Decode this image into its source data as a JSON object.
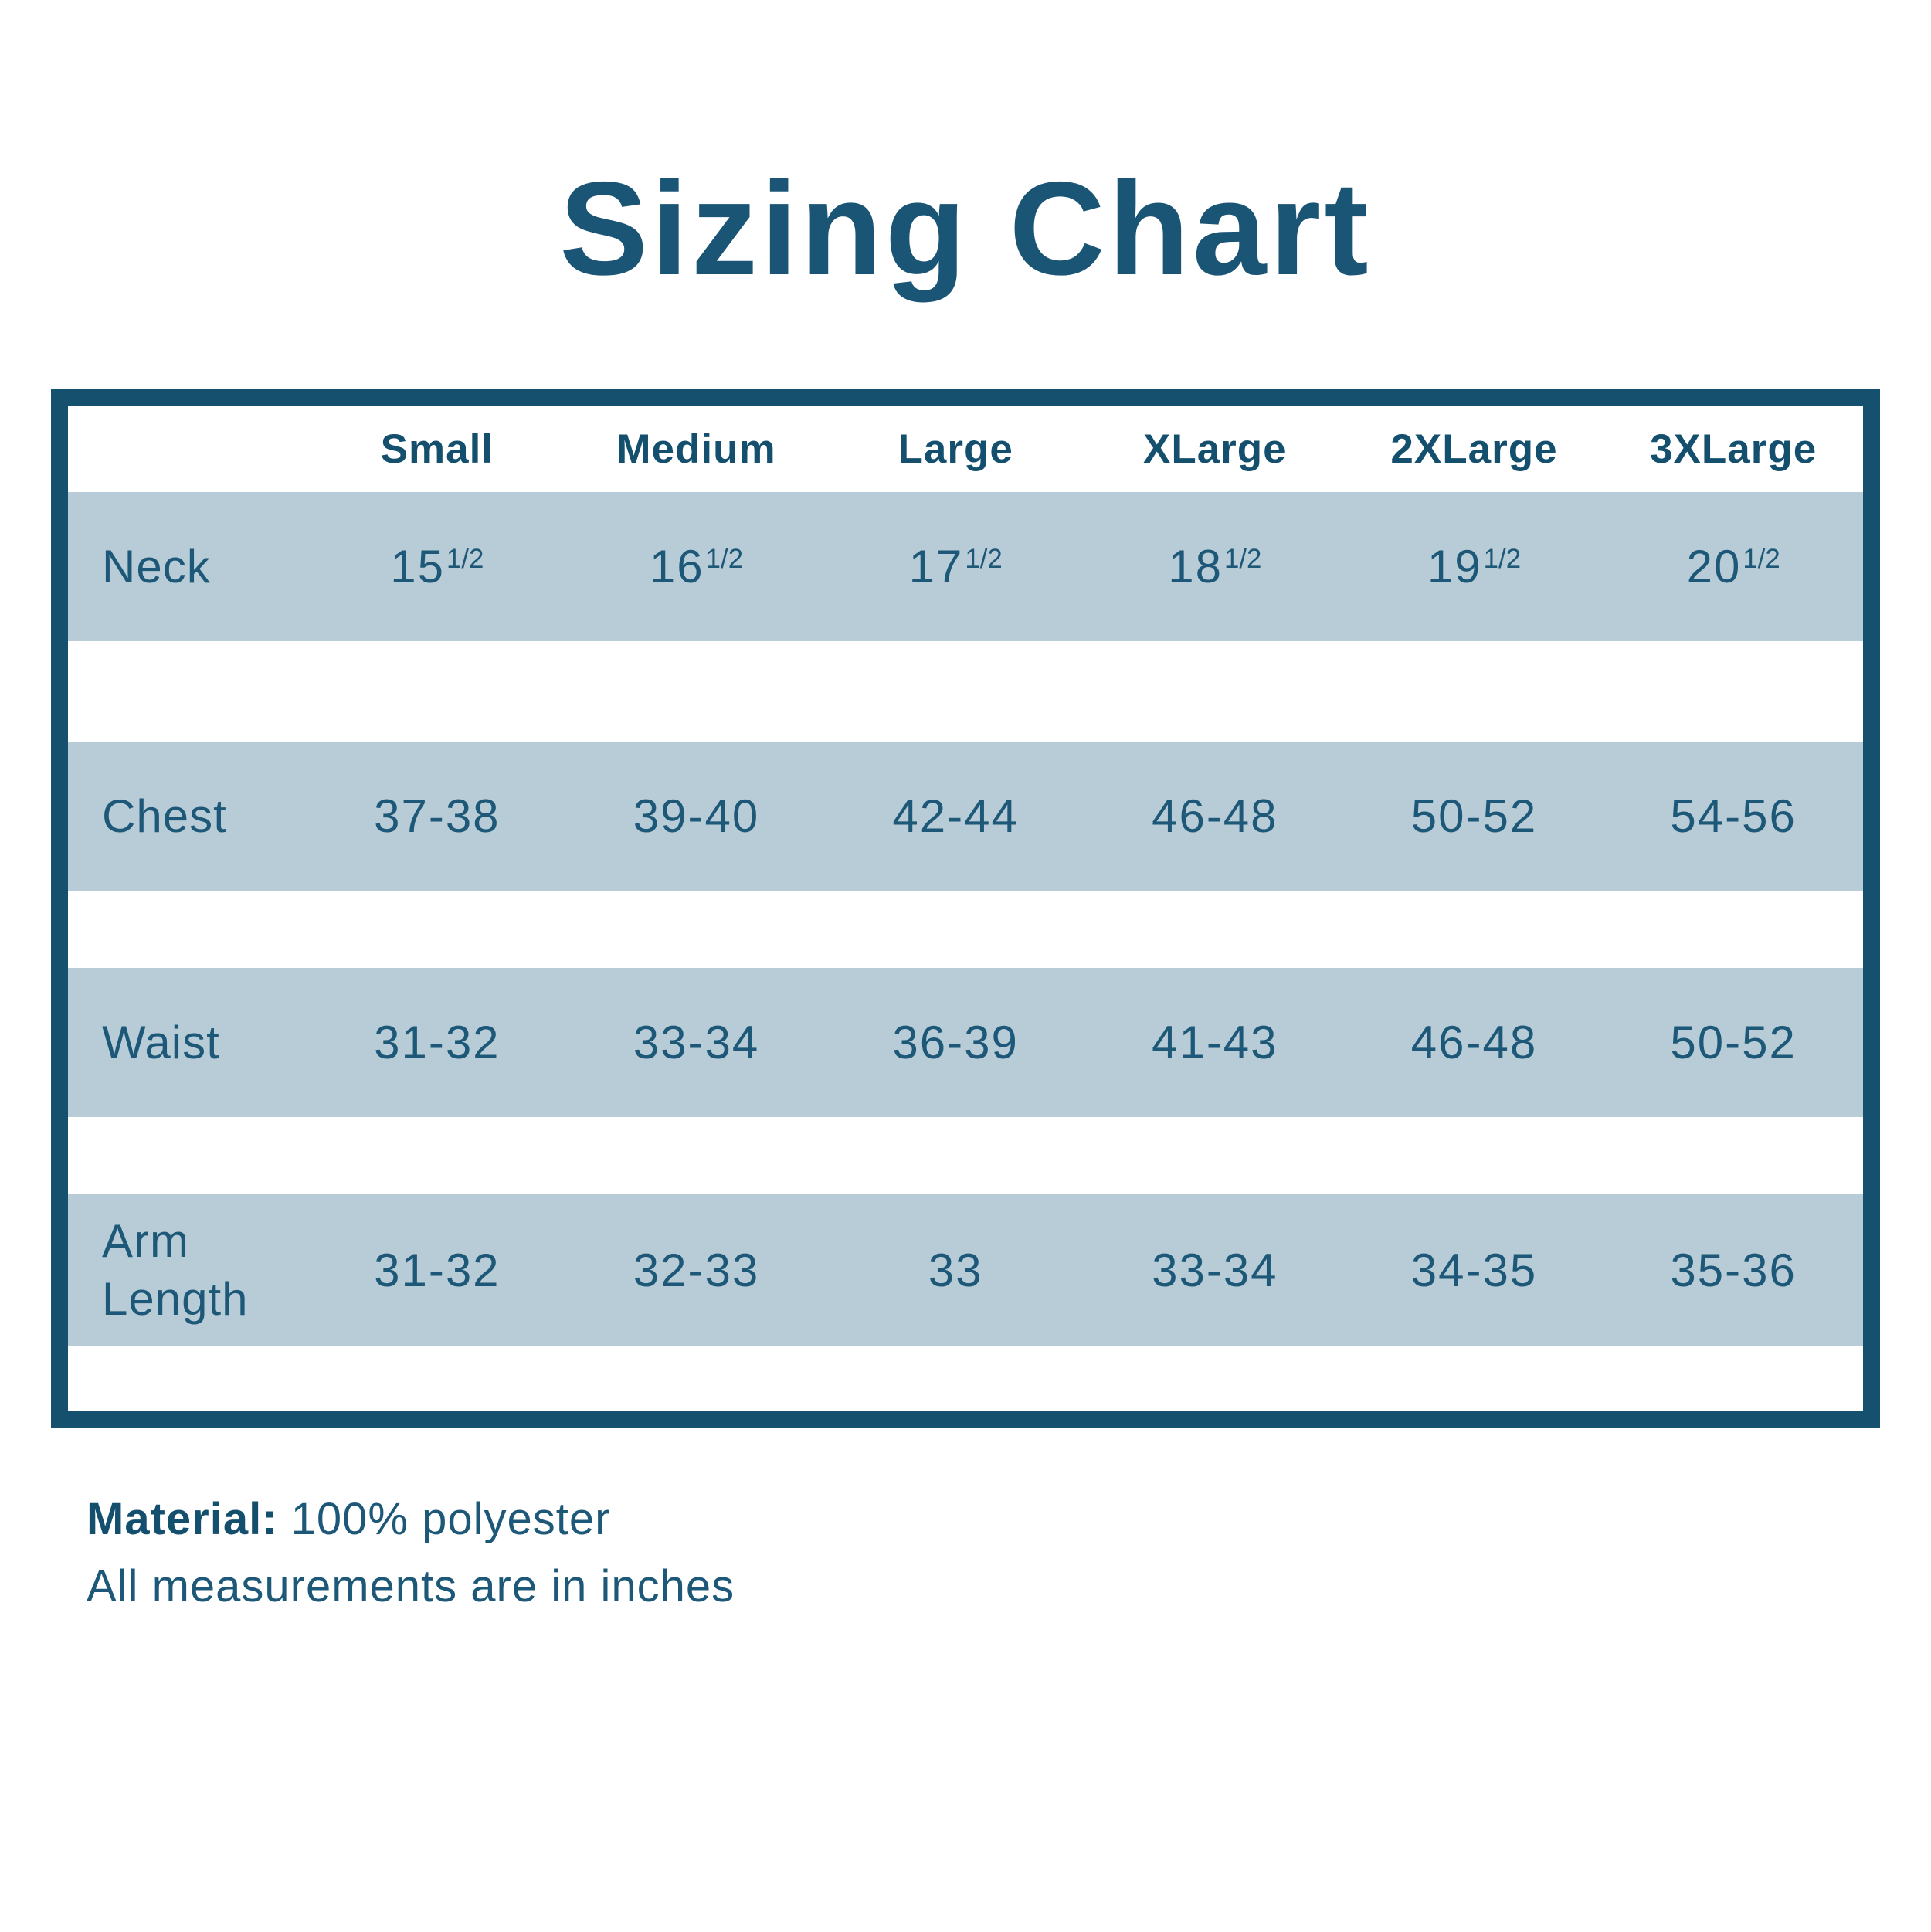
{
  "title": "Sizing Chart",
  "table": {
    "columns": [
      "Small",
      "Medium",
      "Large",
      "XLarge",
      "2XLarge",
      "3XLarge"
    ],
    "rows": [
      {
        "label": "Neck",
        "cells": [
          {
            "main": "15",
            "sup": "1/2"
          },
          {
            "main": "16",
            "sup": "1/2"
          },
          {
            "main": "17",
            "sup": "1/2"
          },
          {
            "main": "18",
            "sup": "1/2"
          },
          {
            "main": "19",
            "sup": "1/2"
          },
          {
            "main": "20",
            "sup": "1/2"
          }
        ]
      },
      {
        "label": "Chest",
        "cells": [
          {
            "main": "37-38"
          },
          {
            "main": "39-40"
          },
          {
            "main": "42-44"
          },
          {
            "main": "46-48"
          },
          {
            "main": "50-52"
          },
          {
            "main": "54-56"
          }
        ]
      },
      {
        "label": "Waist",
        "cells": [
          {
            "main": "31-32"
          },
          {
            "main": "33-34"
          },
          {
            "main": "36-39"
          },
          {
            "main": "41-43"
          },
          {
            "main": "46-48"
          },
          {
            "main": "50-52"
          }
        ]
      },
      {
        "label": "Arm Length",
        "cells": [
          {
            "main": "31-32"
          },
          {
            "main": "32-33"
          },
          {
            "main": "33"
          },
          {
            "main": "33-34"
          },
          {
            "main": "34-35"
          },
          {
            "main": "35-36"
          }
        ]
      }
    ]
  },
  "notes": {
    "material_label": "Material:",
    "material_value": "100% polyester",
    "measurements": "All measurements are in inches"
  },
  "colors": {
    "ink": "#15506f",
    "title": "#1b5575",
    "cell_text": "#1d5878",
    "band": "#b7ccd6",
    "background": "#ffffff"
  },
  "chart_data": {
    "type": "table",
    "title": "Sizing Chart",
    "columns": [
      "",
      "Small",
      "Medium",
      "Large",
      "XLarge",
      "2XLarge",
      "3XLarge"
    ],
    "rows": [
      [
        "Neck",
        "15 1/2",
        "16 1/2",
        "17 1/2",
        "18 1/2",
        "19 1/2",
        "20 1/2"
      ],
      [
        "Chest",
        "37-38",
        "39-40",
        "42-44",
        "46-48",
        "50-52",
        "54-56"
      ],
      [
        "Waist",
        "31-32",
        "33-34",
        "36-39",
        "41-43",
        "46-48",
        "50-52"
      ],
      [
        "Arm Length",
        "31-32",
        "32-33",
        "33",
        "33-34",
        "34-35",
        "35-36"
      ]
    ],
    "notes": [
      "Material: 100% polyester",
      "All measurements are in inches"
    ],
    "layout": "alternating light-blue row bands inside dark teal frame, white gap rows between measurement rows"
  }
}
